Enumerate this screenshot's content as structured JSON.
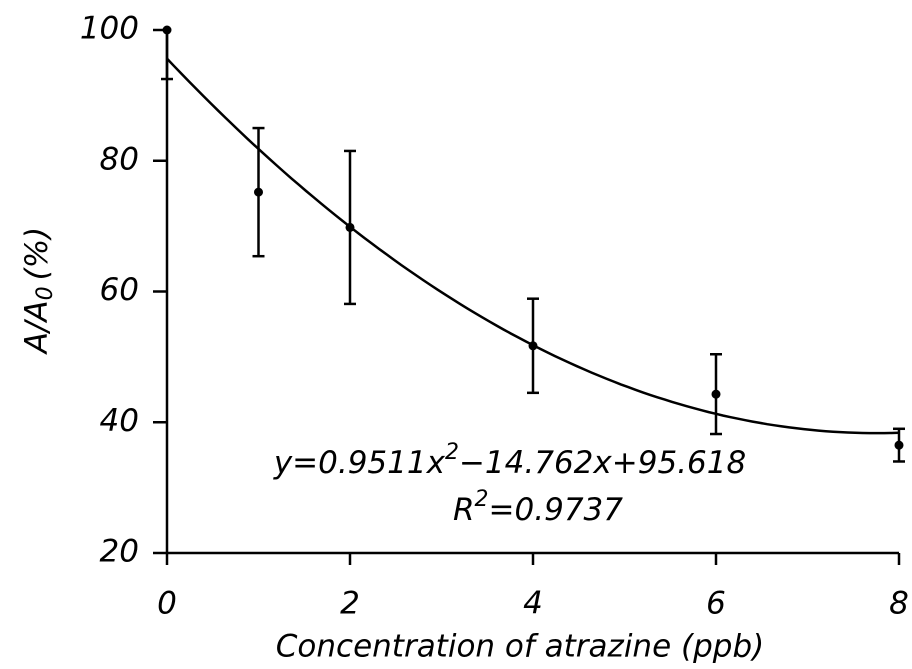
{
  "chart_data": {
    "type": "scatter",
    "x_label": "Concentration of atrazine (ppb)",
    "y_label": [
      "A/A",
      "0",
      "(%)"
    ],
    "x": [
      0,
      1,
      2,
      4,
      6,
      8
    ],
    "values": [
      100,
      75.2,
      69.8,
      51.7,
      44.3,
      36.5
    ],
    "errors": [
      7.5,
      9.8,
      11.7,
      7.2,
      6.1,
      2.5
    ],
    "color": "#000000",
    "fit": {
      "coefficients": [
        0.9511,
        -14.762,
        95.618
      ]
    },
    "annotations": [
      [
        "y=0.9511x",
        "2",
        "−14.762x+95.618"
      ],
      [
        "R",
        "2",
        "=0.9737"
      ]
    ],
    "xlim": [
      0,
      8
    ],
    "ylim": [
      20,
      100
    ],
    "xticks": [
      0,
      2,
      4,
      6,
      8
    ],
    "yticks": [
      20,
      40,
      60,
      80,
      100
    ]
  }
}
